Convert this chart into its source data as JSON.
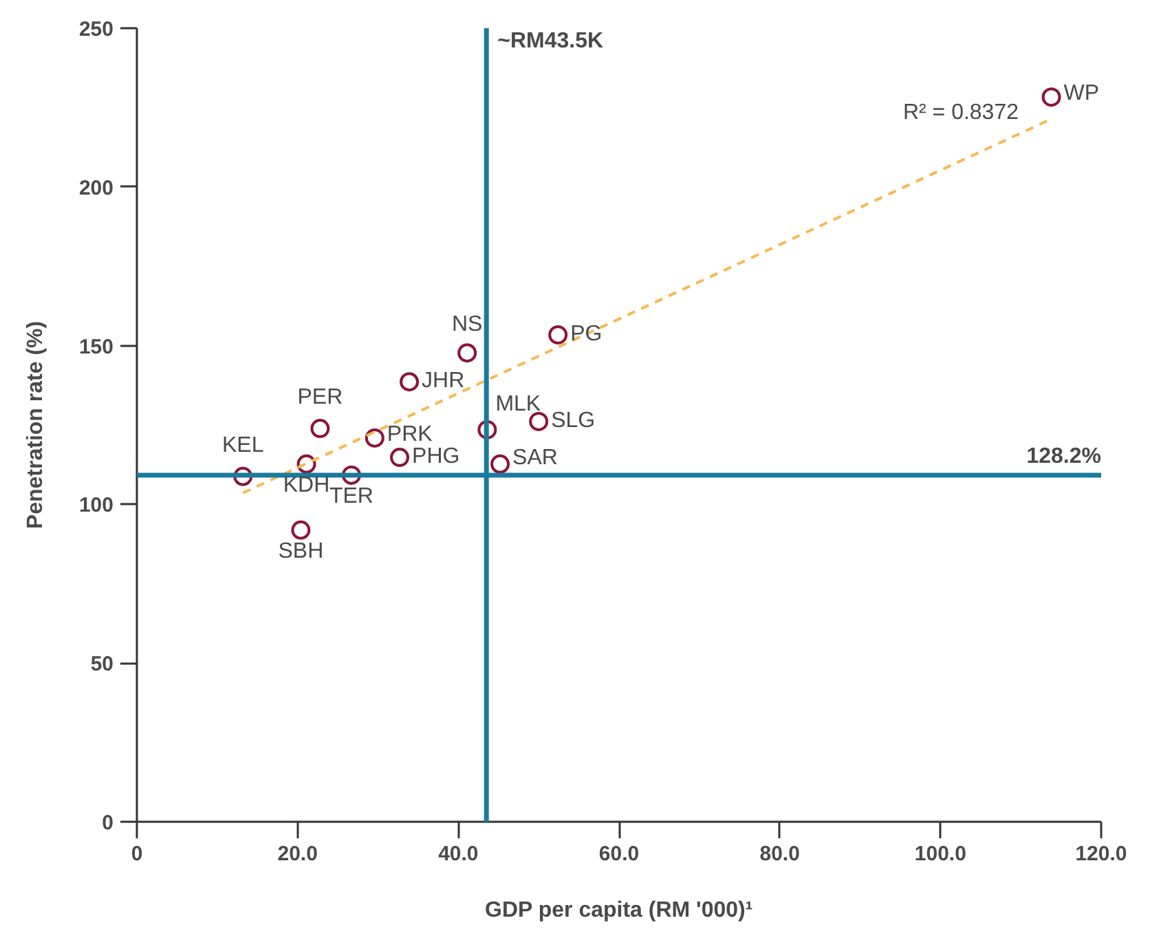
{
  "chart_data": {
    "type": "scatter",
    "xlabel": "GDP per capita (RM '000)¹",
    "ylabel": "Penetration rate (%)",
    "xlim": [
      0,
      120
    ],
    "xticks": [
      0,
      {
        "value": 20,
        "label": "20.0"
      },
      {
        "value": 40,
        "label": "40.0"
      },
      {
        "value": 60,
        "label": "60.0"
      },
      {
        "value": 80,
        "label": "80.0"
      },
      {
        "value": 100,
        "label": "100.0"
      },
      {
        "value": 120,
        "label": "120.0"
      }
    ],
    "ylim": [
      0,
      250
    ],
    "yticks": [
      0,
      50,
      100,
      150,
      200,
      250
    ],
    "grid": false,
    "series": [
      {
        "marker": "circle",
        "color": "#8b1538",
        "x": [
          13.2,
          21.1,
          22.8,
          26.7,
          20.4,
          29.6,
          32.7,
          33.9,
          41.1,
          43.6,
          45.2,
          50.0,
          52.4,
          113.8
        ],
        "values": [
          108.8,
          112.7,
          123.9,
          109.2,
          91.9,
          120.9,
          114.8,
          138.6,
          147.7,
          123.5,
          112.7,
          126.1,
          153.4,
          228.3
        ]
      },
      {
        "type": "line",
        "color": "#f7b955",
        "line_style": "dashed",
        "x": [
          13.2,
          113.8
        ],
        "values": [
          103.6,
          221.4
        ]
      }
    ],
    "ref_lines": [
      {
        "axis": "x",
        "value": 43.5,
        "label": "~RM43.5K",
        "color": "#1a7a9e"
      },
      {
        "axis": "y",
        "value": 109.2,
        "color": "#1a7a9e"
      }
    ],
    "annotations": [
      {
        "text": "KEL",
        "x": 13.2,
        "y": 108.8
      },
      {
        "text": "KDH",
        "x": 21.1,
        "y": 112.7
      },
      {
        "text": "PER",
        "x": 22.8,
        "y": 123.9
      },
      {
        "text": "TER",
        "x": 26.7,
        "y": 109.2
      },
      {
        "text": "SBH",
        "x": 20.4,
        "y": 91.9
      },
      {
        "text": "PRK",
        "x": 29.6,
        "y": 120.9
      },
      {
        "text": "PHG",
        "x": 32.7,
        "y": 114.8
      },
      {
        "text": "JHR",
        "x": 33.9,
        "y": 138.6
      },
      {
        "text": "NS",
        "x": 41.1,
        "y": 147.7
      },
      {
        "text": "MLK",
        "x": 43.6,
        "y": 123.5
      },
      {
        "text": "SAR",
        "x": 45.2,
        "y": 112.7
      },
      {
        "text": "SLG",
        "x": 50.0,
        "y": 126.1
      },
      {
        "text": "PG",
        "x": 52.4,
        "y": 153.4
      },
      {
        "text": "WP",
        "x": 113.8,
        "y": 228.3
      },
      "R² = 0.8372",
      "128.2%"
    ]
  }
}
